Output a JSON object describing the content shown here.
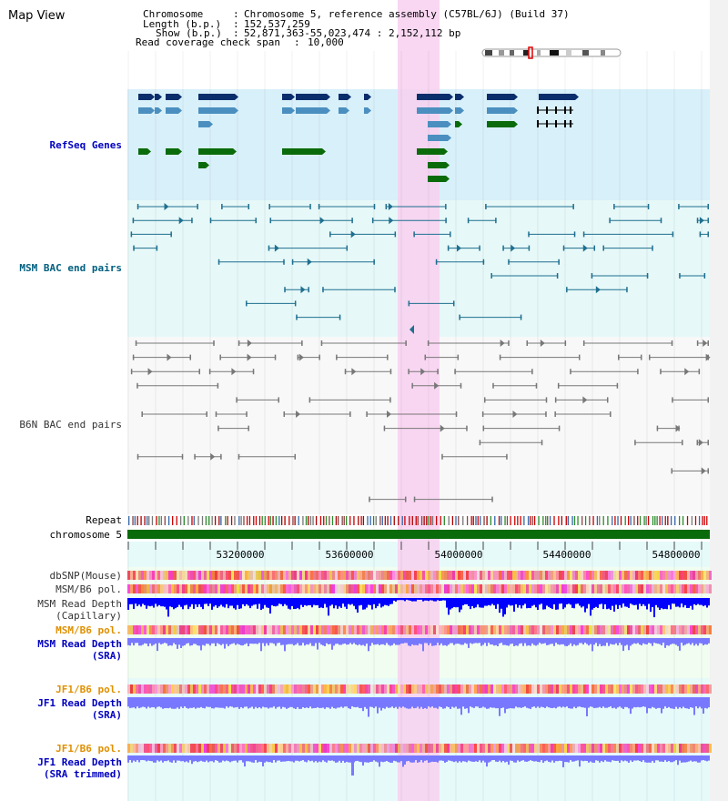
{
  "view_title": "Map View",
  "info": {
    "chromosome_label": "Chromosome",
    "chromosome_value": "Chromosome 5, reference assembly (C57BL/6J) (Build 37)",
    "length_label": "Length (b.p.)",
    "length_value": "152,537,259",
    "show_label": "Show (b.p.)",
    "show_value": "52,871,363-55,023,474 : 2,152,112 bp",
    "coverage_label": "Read coverage check span",
    "coverage_value": "10,000"
  },
  "tracks": {
    "refseq": "RefSeq Genes",
    "msm_bac": "MSM BAC end pairs",
    "b6n_bac": "B6N BAC end pairs",
    "repeat": "Repeat",
    "chromosome": "chromosome 5",
    "dbsnp": "dbSNP(Mouse)",
    "msm_b6_pol_1": "MSM/B6 pol.",
    "msm_depth_cap_1": "MSM Read Depth",
    "msm_depth_cap_2": "(Capillary)",
    "msm_b6_pol_2": "MSM/B6 pol.",
    "msm_depth_sra_1": "MSM Read Depth",
    "msm_depth_sra_2": "(SRA)",
    "jf1_b6_pol_1": "JF1/B6 pol.",
    "jf1_depth_sra_1": "JF1 Read Depth",
    "jf1_depth_sra_2": "(SRA)",
    "jf1_b6_pol_2": "JF1/B6 pol.",
    "jf1_depth_trim_1": "JF1 Read Depth",
    "jf1_depth_trim_2": "(SRA trimmed)"
  },
  "axis": {
    "ticks": [
      "53200000",
      "53600000",
      "54000000",
      "54400000",
      "54800000"
    ]
  },
  "colors": {
    "refseq_dark": "#0a2d6b",
    "refseq_mid": "#4a8fbf",
    "refseq_green": "#0a6b0a",
    "msm_bac": "#1f6f8f",
    "b6n_bac": "#777777",
    "highlight": "#f8d0f0",
    "label_blue": "#0000c0",
    "label_teal": "#006080",
    "label_orange": "#e09000",
    "depth_blue": "#0000ff",
    "depth_violet": "#7878ff"
  }
}
